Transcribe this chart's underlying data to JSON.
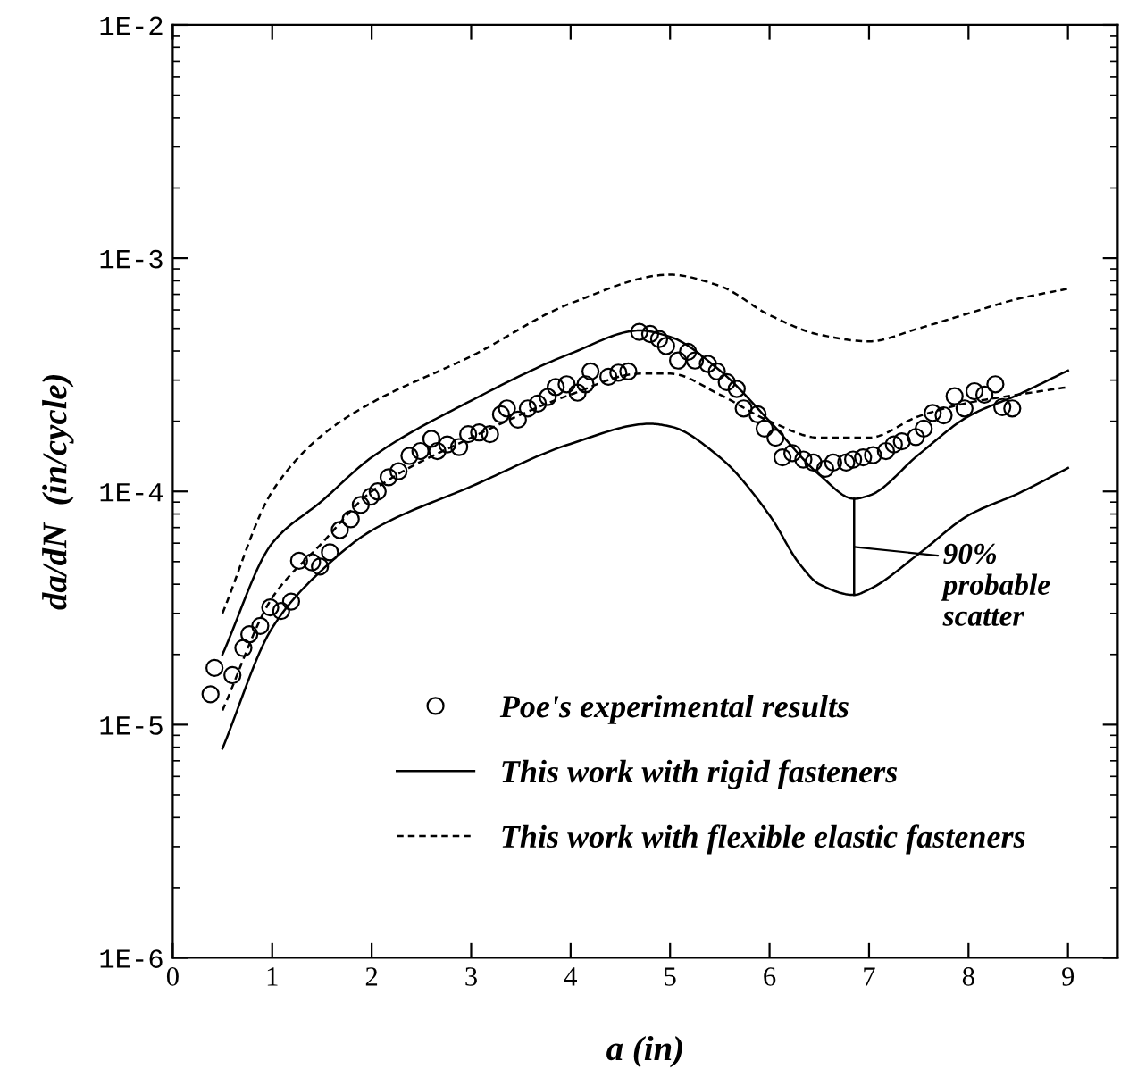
{
  "chart_data": {
    "type": "line",
    "xlabel": "a (in)",
    "ylabel": "da/dN  (in/cycle)",
    "log": "y",
    "xlim": [
      0,
      9.5
    ],
    "xticks": [
      0,
      1,
      2,
      3,
      4,
      5,
      6,
      7,
      8,
      9
    ],
    "ylim": [
      1e-06,
      0.01
    ],
    "yticks": [
      {
        "value": 1e-06,
        "label": "1E-6"
      },
      {
        "value": 1e-05,
        "label": "1E-5"
      },
      {
        "value": 0.0001,
        "label": "1E-4"
      },
      {
        "value": 0.001,
        "label": "1E-3"
      },
      {
        "value": 0.01,
        "label": "1E-2"
      }
    ],
    "grid": false,
    "legend": "bottom",
    "series": [
      {
        "name": "Poe's experimental results",
        "type": "scatter",
        "marker": "circle",
        "color": "#000000",
        "x": [
          0.38,
          0.42,
          0.6,
          0.71,
          0.77,
          0.88,
          0.98,
          1.09,
          1.19,
          1.27,
          1.4,
          1.48,
          1.58,
          1.68,
          1.79,
          1.89,
          1.99,
          2.06,
          2.17,
          2.27,
          2.38,
          2.49,
          2.6,
          2.66,
          2.76,
          2.88,
          2.97,
          3.08,
          3.19,
          3.3,
          3.36,
          3.47,
          3.57,
          3.67,
          3.77,
          3.85,
          3.96,
          4.07,
          4.15,
          4.2,
          4.38,
          4.48,
          4.58,
          4.69,
          4.8,
          4.89,
          4.96,
          5.08,
          5.18,
          5.25,
          5.38,
          5.47,
          5.57,
          5.67,
          5.74,
          5.88,
          5.95,
          6.06,
          6.13,
          6.23,
          6.34,
          6.44,
          6.56,
          6.64,
          6.77,
          6.84,
          6.94,
          7.04,
          7.17,
          7.25,
          7.33,
          7.47,
          7.55,
          7.64,
          7.75,
          7.86,
          7.96,
          8.06,
          8.16,
          8.27,
          8.34,
          8.44
        ],
        "values": [
          1.35e-05,
          1.75e-05,
          1.63e-05,
          2.13e-05,
          2.44e-05,
          2.65e-05,
          3.18e-05,
          3.07e-05,
          3.37e-05,
          5.04e-05,
          4.97e-05,
          4.76e-05,
          5.48e-05,
          6.83e-05,
          7.6e-05,
          8.75e-05,
          9.5e-05,
          0.0001,
          0.000115,
          0.000122,
          0.000142,
          0.000149,
          0.000168,
          0.000149,
          0.000159,
          0.000155,
          0.000176,
          0.000179,
          0.000176,
          0.000214,
          0.000227,
          0.000203,
          0.000227,
          0.000238,
          0.000254,
          0.00028,
          0.000288,
          0.000265,
          0.000288,
          0.000327,
          0.00031,
          0.000323,
          0.000327,
          0.000483,
          0.000473,
          0.00045,
          0.00042,
          0.000364,
          0.000397,
          0.000364,
          0.000352,
          0.000327,
          0.000294,
          0.000275,
          0.000227,
          0.000214,
          0.000186,
          0.00017,
          0.00014,
          0.000146,
          0.000137,
          0.000133,
          0.000125,
          0.000133,
          0.000133,
          0.000137,
          0.00014,
          0.000143,
          0.000149,
          0.000159,
          0.000164,
          0.000171,
          0.000186,
          0.000217,
          0.000212,
          0.000256,
          0.000227,
          0.000269,
          0.00026,
          0.000288,
          0.00023,
          0.000227
        ]
      },
      {
        "name": "This work with rigid fasteners",
        "line_style": "solid",
        "color": "#000000",
        "x": [
          0.5,
          1,
          1.5,
          2,
          3,
          4,
          4.7,
          5,
          5.5,
          6,
          6.5,
          6.85,
          7,
          7.5,
          8,
          8.5,
          9
        ],
        "values": [
          2e-05,
          6e-05,
          9.1e-05,
          0.00014,
          0.000245,
          0.00039,
          0.00049,
          0.00046,
          0.00033,
          0.0002,
          0.000118,
          9.3e-05,
          9.6e-05,
          0.000144,
          0.00021,
          0.00026,
          0.00033
        ]
      },
      {
        "line_style": "solid",
        "color": "#000000",
        "x": [
          0.5,
          1,
          1.5,
          2,
          3,
          4,
          4.8,
          5,
          5.5,
          6,
          6.3,
          6.5,
          6.85,
          7,
          7.5,
          8,
          8.5,
          9
        ],
        "values": [
          7.9e-06,
          2.6e-05,
          4.6e-05,
          6.8e-05,
          0.000105,
          0.00016,
          0.000195,
          0.00019,
          0.00014,
          7.9e-05,
          4.9e-05,
          4e-05,
          3.6e-05,
          3.8e-05,
          5.4e-05,
          7.9e-05,
          9.8e-05,
          0.000126
        ]
      },
      {
        "name": "This work with flexible elastic fasteners",
        "line_style": "dashed",
        "color": "#000000",
        "x": [
          0.5,
          1,
          1.5,
          2,
          3,
          4,
          5,
          5.5,
          6,
          6.5,
          7,
          7.5,
          8,
          8.5,
          9
        ],
        "values": [
          3e-05,
          0.0001,
          0.000174,
          0.00024,
          0.00038,
          0.00064,
          0.00085,
          0.00076,
          0.00057,
          0.00047,
          0.00044,
          0.0005,
          0.00058,
          0.00067,
          0.00074
        ]
      },
      {
        "line_style": "dashed",
        "color": "#000000",
        "x": [
          0.5,
          1,
          1.5,
          2,
          3,
          4,
          4.7,
          5,
          5.5,
          6,
          6.5,
          7,
          7.5,
          8,
          8.5,
          9
        ],
        "values": [
          1.15e-05,
          3.5e-05,
          6e-05,
          0.0001,
          0.00017,
          0.00026,
          0.00032,
          0.00032,
          0.00026,
          0.0002,
          0.00017,
          0.00017,
          0.00021,
          0.00024,
          0.00026,
          0.00028
        ]
      }
    ],
    "annotations": [
      "90%\nprobable\nscatter"
    ]
  }
}
